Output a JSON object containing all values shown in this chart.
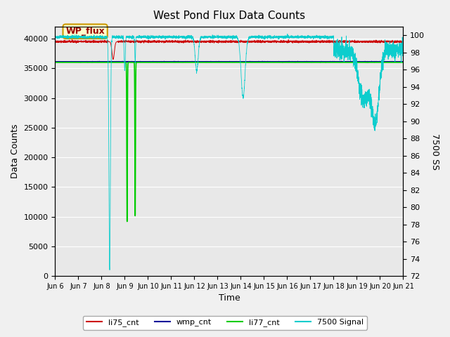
{
  "title": "West Pond Flux Data Counts",
  "xlabel": "Time",
  "ylabel_left": "Data Counts",
  "ylabel_right": "7500 SS",
  "annotation_text": "WP_flux",
  "ylim_left": [
    0,
    42000
  ],
  "ylim_right": [
    72,
    101
  ],
  "n_days": 15,
  "xtick_positions": [
    0,
    1,
    2,
    3,
    4,
    5,
    6,
    7,
    8,
    9,
    10,
    11,
    12,
    13,
    14,
    15
  ],
  "xtick_labels": [
    "Jun 6",
    "Jun 7",
    "Jun 8",
    "Jun 9",
    "Jun 10",
    "Jun 11",
    "Jun 12",
    "Jun 13",
    "Jun 14",
    "Jun 15",
    "Jun 16",
    "Jun 17",
    "Jun 18",
    "Jun 19",
    "Jun 20",
    "Jun 21"
  ],
  "yticks_left": [
    0,
    5000,
    10000,
    15000,
    20000,
    25000,
    30000,
    35000,
    40000
  ],
  "yticks_right": [
    72,
    74,
    76,
    78,
    80,
    82,
    84,
    86,
    88,
    90,
    92,
    94,
    96,
    98,
    100
  ],
  "colors": {
    "li75_cnt": "#cc0000",
    "wmp_cnt": "#000099",
    "li77_cnt": "#00cc00",
    "signal_7500": "#00cccc",
    "annotation_bg": "#ffffcc",
    "annotation_border": "#cc9900",
    "annotation_text": "#990000"
  },
  "background_color": "#e8e8e8",
  "grid_color": "#ffffff"
}
